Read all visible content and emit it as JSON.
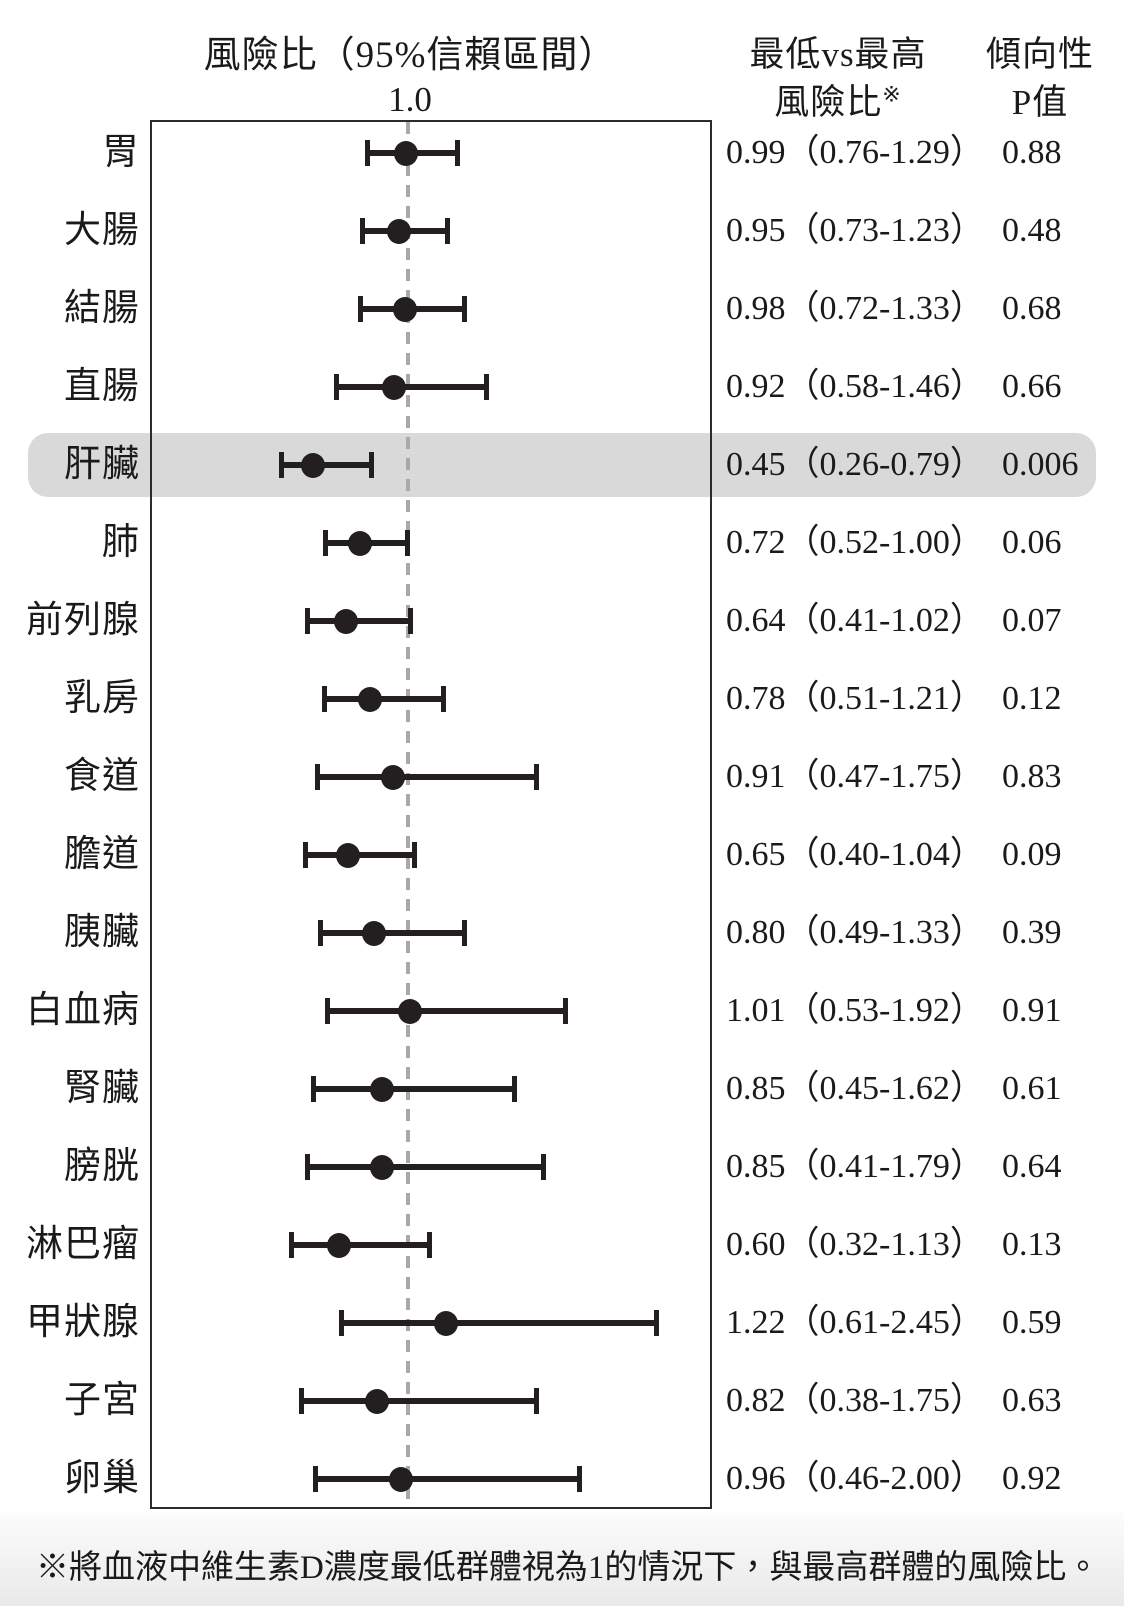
{
  "title": "風險比（95%信賴區間）",
  "axis": {
    "ref_label": "1.0",
    "ref_value": 1.0
  },
  "columns": {
    "hr": {
      "line1": "最低vs最高",
      "line2": "風險比",
      "sup": "※"
    },
    "p": {
      "line1": "傾向性",
      "line2": "P值"
    }
  },
  "footnote": "※將血液中維生素D濃度最低群體視為1的情況下，與最高群體的風險比。",
  "colors": {
    "marker": "#231f20",
    "highlight_band": "#d9d9d9",
    "ref_line": "#a9a9a9",
    "text": "#1a1a1a"
  },
  "chart_data": {
    "type": "forest",
    "x_axis": {
      "scale": "linear",
      "ref_line": 1.0,
      "ref_label": "1.0"
    },
    "legend": "point = hazard ratio, whiskers = 95% CI",
    "rows": [
      {
        "label": "胃",
        "hr": 0.99,
        "ci_low": 0.76,
        "ci_high": 1.29,
        "hr_text": "0.99（0.76-1.29）",
        "p_text": "0.88",
        "highlight": false
      },
      {
        "label": "大腸",
        "hr": 0.95,
        "ci_low": 0.73,
        "ci_high": 1.23,
        "hr_text": "0.95（0.73-1.23）",
        "p_text": "0.48",
        "highlight": false
      },
      {
        "label": "結腸",
        "hr": 0.98,
        "ci_low": 0.72,
        "ci_high": 1.33,
        "hr_text": "0.98（0.72-1.33）",
        "p_text": "0.68",
        "highlight": false
      },
      {
        "label": "直腸",
        "hr": 0.92,
        "ci_low": 0.58,
        "ci_high": 1.46,
        "hr_text": "0.92（0.58-1.46）",
        "p_text": "0.66",
        "highlight": false
      },
      {
        "label": "肝臟",
        "hr": 0.45,
        "ci_low": 0.26,
        "ci_high": 0.79,
        "hr_text": "0.45（0.26-0.79）",
        "p_text": "0.006",
        "highlight": true
      },
      {
        "label": "肺",
        "hr": 0.72,
        "ci_low": 0.52,
        "ci_high": 1.0,
        "hr_text": "0.72（0.52-1.00）",
        "p_text": "0.06",
        "highlight": false
      },
      {
        "label": "前列腺",
        "hr": 0.64,
        "ci_low": 0.41,
        "ci_high": 1.02,
        "hr_text": "0.64（0.41-1.02）",
        "p_text": "0.07",
        "highlight": false
      },
      {
        "label": "乳房",
        "hr": 0.78,
        "ci_low": 0.51,
        "ci_high": 1.21,
        "hr_text": "0.78（0.51-1.21）",
        "p_text": "0.12",
        "highlight": false
      },
      {
        "label": "食道",
        "hr": 0.91,
        "ci_low": 0.47,
        "ci_high": 1.75,
        "hr_text": "0.91（0.47-1.75）",
        "p_text": "0.83",
        "highlight": false
      },
      {
        "label": "膽道",
        "hr": 0.65,
        "ci_low": 0.4,
        "ci_high": 1.04,
        "hr_text": "0.65（0.40-1.04）",
        "p_text": "0.09",
        "highlight": false
      },
      {
        "label": "胰臟",
        "hr": 0.8,
        "ci_low": 0.49,
        "ci_high": 1.33,
        "hr_text": "0.80（0.49-1.33）",
        "p_text": "0.39",
        "highlight": false
      },
      {
        "label": "白血病",
        "hr": 1.01,
        "ci_low": 0.53,
        "ci_high": 1.92,
        "hr_text": "1.01（0.53-1.92）",
        "p_text": "0.91",
        "highlight": false
      },
      {
        "label": "腎臟",
        "hr": 0.85,
        "ci_low": 0.45,
        "ci_high": 1.62,
        "hr_text": "0.85（0.45-1.62）",
        "p_text": "0.61",
        "highlight": false
      },
      {
        "label": "膀胱",
        "hr": 0.85,
        "ci_low": 0.41,
        "ci_high": 1.79,
        "hr_text": "0.85（0.41-1.79）",
        "p_text": "0.64",
        "highlight": false
      },
      {
        "label": "淋巴瘤",
        "hr": 0.6,
        "ci_low": 0.32,
        "ci_high": 1.13,
        "hr_text": "0.60（0.32-1.13）",
        "p_text": "0.13",
        "highlight": false
      },
      {
        "label": "甲狀腺",
        "hr": 1.22,
        "ci_low": 0.61,
        "ci_high": 2.45,
        "hr_text": "1.22（0.61-2.45）",
        "p_text": "0.59",
        "highlight": false
      },
      {
        "label": "子宮",
        "hr": 0.82,
        "ci_low": 0.38,
        "ci_high": 1.75,
        "hr_text": "0.82（0.38-1.75）",
        "p_text": "0.63",
        "highlight": false
      },
      {
        "label": "卵巢",
        "hr": 0.96,
        "ci_low": 0.46,
        "ci_high": 2.0,
        "hr_text": "0.96（0.46-2.00）",
        "p_text": "0.92",
        "highlight": false
      }
    ]
  }
}
